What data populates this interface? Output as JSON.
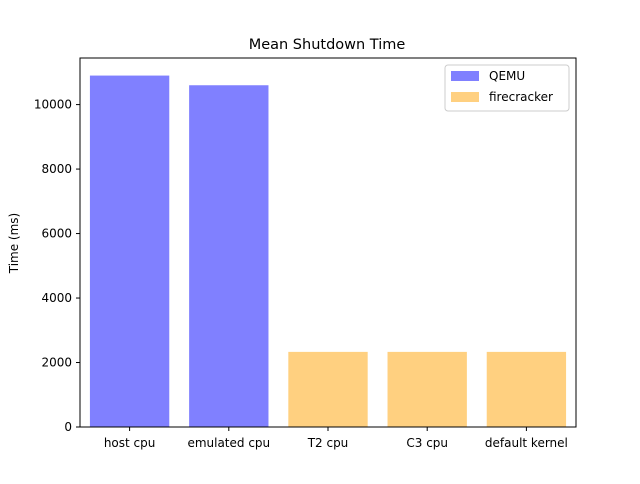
{
  "chart_data": {
    "type": "bar",
    "title": "Mean Shutdown Time",
    "xlabel": "",
    "ylabel": "Time (ms)",
    "categories": [
      "host cpu",
      "emulated cpu",
      "T2 cpu",
      "C3 cpu",
      "default kernel"
    ],
    "series": [
      {
        "name": "QEMU",
        "color": "#8080ff",
        "values": [
          10900,
          10600,
          null,
          null,
          null
        ]
      },
      {
        "name": "firecracker",
        "color": "#ffd080",
        "values": [
          null,
          null,
          2330,
          2330,
          2330
        ]
      }
    ],
    "ylim": [
      0,
      11445
    ],
    "yticks": [
      0,
      2000,
      4000,
      6000,
      8000,
      10000
    ],
    "grid": false,
    "legend_position": "top-right"
  }
}
